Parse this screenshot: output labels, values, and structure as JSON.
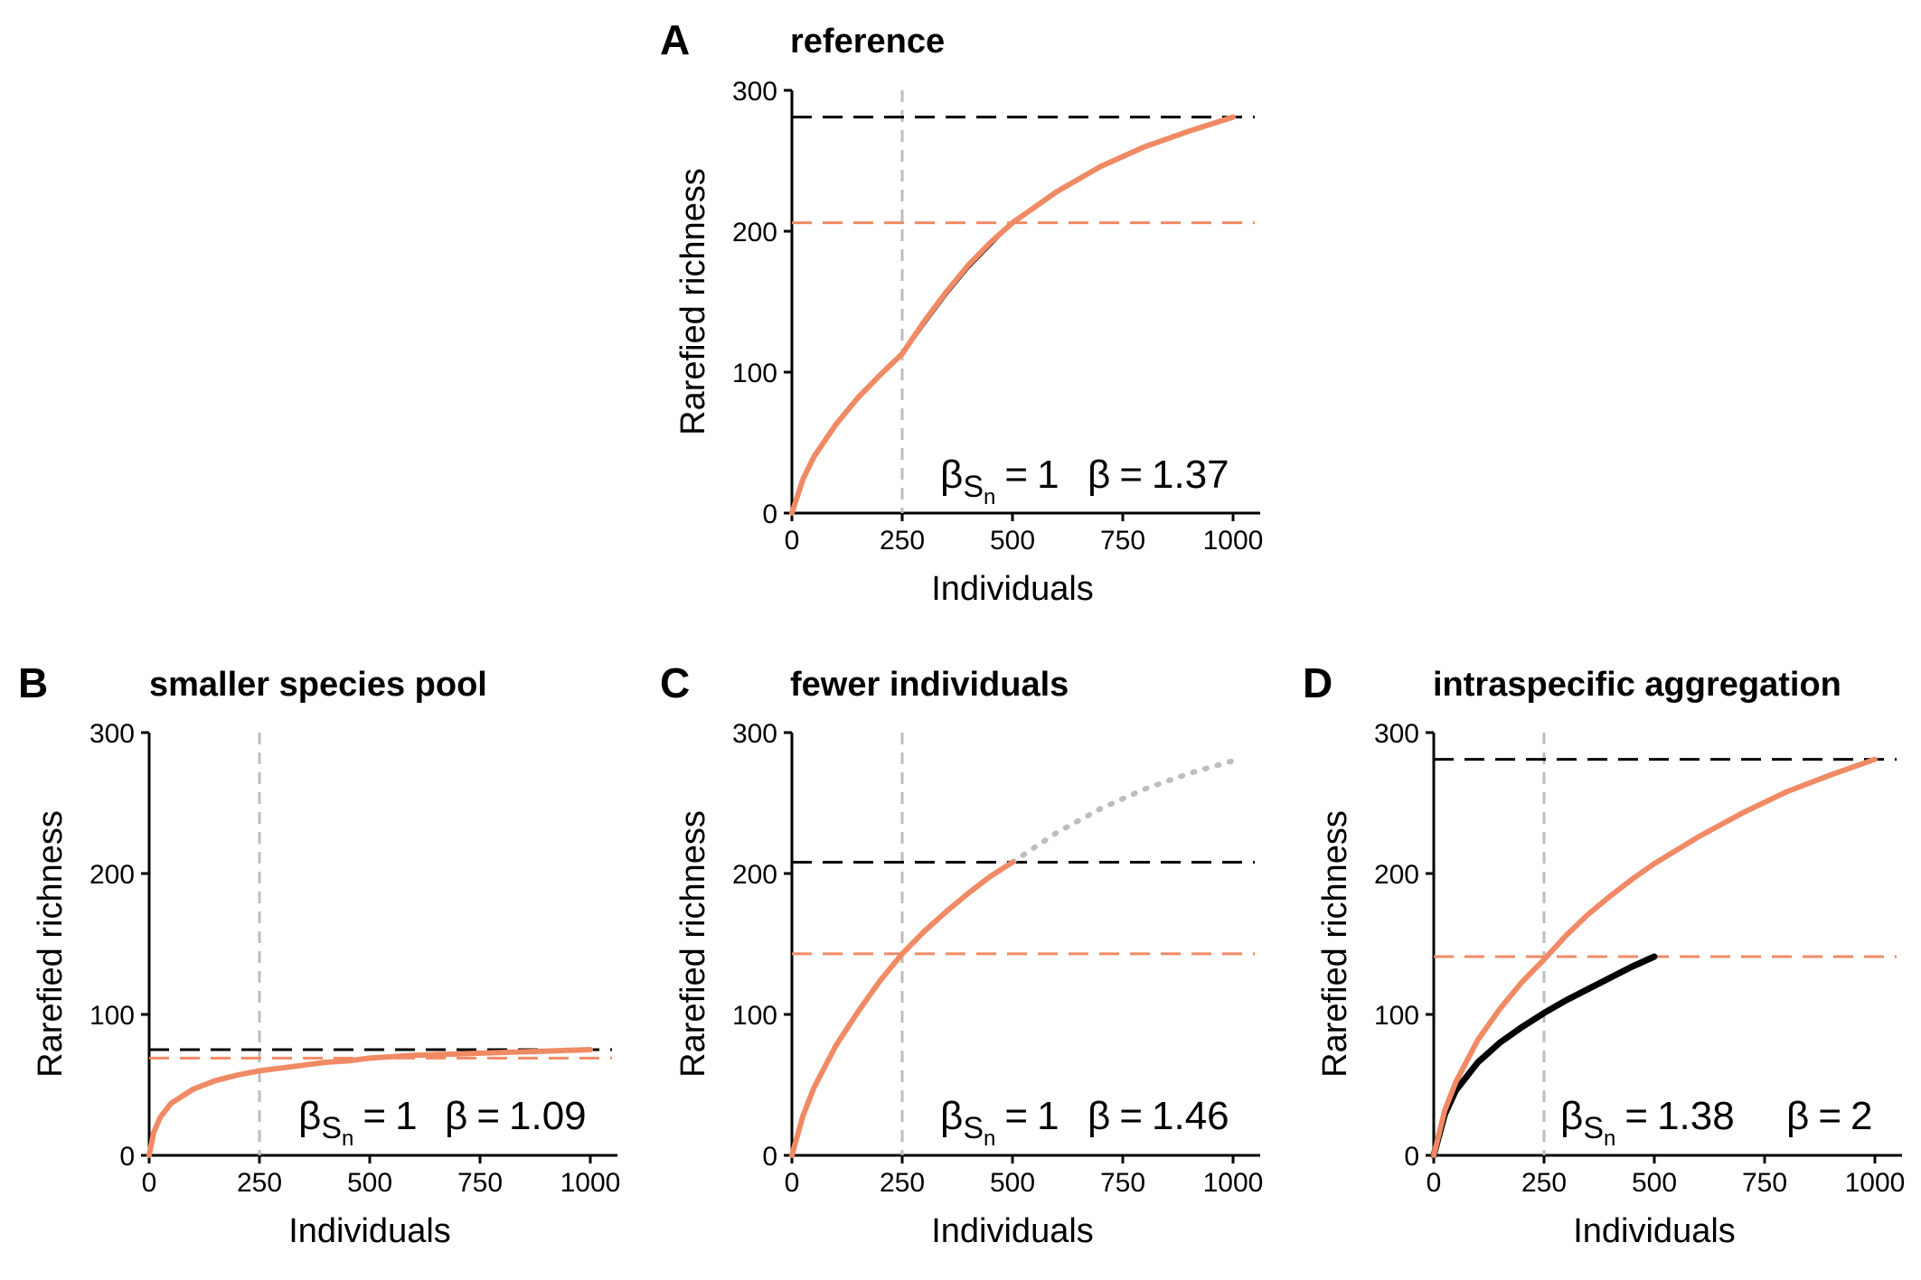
{
  "chart_data": [
    {
      "panel": "A",
      "title": "reference",
      "type": "line",
      "xlabel": "Individuals",
      "ylabel": "Rarefied richness",
      "xlim": [
        0,
        1000
      ],
      "ylim": [
        0,
        300
      ],
      "xticks": [
        "0",
        "250",
        "500",
        "750",
        "1000"
      ],
      "yticks": [
        "0",
        "100",
        "200",
        "300"
      ],
      "hlines": [
        {
          "y": 281,
          "color": "#000000",
          "style": "dashed"
        },
        {
          "y": 206,
          "color": "#F08A65",
          "style": "dashed"
        }
      ],
      "vline": {
        "x": 250,
        "color": "#BDBDBD",
        "style": "dashed"
      },
      "series": [
        {
          "color": "#000000",
          "style": "solid",
          "x": [
            0,
            25,
            50,
            100,
            150,
            200,
            250,
            300,
            350,
            400,
            450,
            500
          ],
          "y": [
            0,
            24,
            40,
            63,
            82,
            98,
            112,
            134,
            155,
            174,
            190,
            206
          ]
        },
        {
          "color": "#F08A65",
          "style": "solid",
          "x": [
            0,
            25,
            50,
            100,
            150,
            200,
            250,
            300,
            350,
            400,
            450,
            500,
            600,
            700,
            800,
            900,
            1000
          ],
          "y": [
            0,
            24,
            40,
            63,
            82,
            98,
            113,
            136,
            157,
            176,
            192,
            206,
            228,
            246,
            260,
            271,
            281
          ]
        }
      ],
      "annotations": {
        "beta_sn_label": "β",
        "beta_sn_sub": "S",
        "beta_sn_subsub": "n",
        "eq": "=",
        "beta_sn_value": "1",
        "beta_label": "β",
        "beta_value": "1.37"
      }
    },
    {
      "panel": "B",
      "title": "smaller species pool",
      "type": "line",
      "xlabel": "Individuals",
      "ylabel": "Rarefied richness",
      "xlim": [
        0,
        1000
      ],
      "ylim": [
        0,
        300
      ],
      "xticks": [
        "0",
        "250",
        "500",
        "750",
        "1000"
      ],
      "yticks": [
        "0",
        "100",
        "200",
        "300"
      ],
      "hlines": [
        {
          "y": 75,
          "color": "#000000",
          "style": "dashed"
        },
        {
          "y": 69,
          "color": "#F08A65",
          "style": "dashed"
        }
      ],
      "vline": {
        "x": 250,
        "color": "#BDBDBD",
        "style": "dashed"
      },
      "series": [
        {
          "color": "#000000",
          "style": "solid",
          "x": [
            0,
            10,
            25,
            50,
            100,
            150,
            200,
            250,
            300,
            350,
            400,
            450,
            500
          ],
          "y": [
            0,
            16,
            27,
            37,
            47,
            53,
            57,
            60,
            62,
            64,
            66,
            67,
            69
          ]
        },
        {
          "color": "#F08A65",
          "style": "solid",
          "x": [
            0,
            10,
            25,
            50,
            100,
            150,
            200,
            250,
            300,
            350,
            400,
            450,
            500,
            600,
            700,
            800,
            900,
            1000
          ],
          "y": [
            0,
            16,
            27,
            37,
            47,
            53,
            57,
            60,
            62,
            64,
            66,
            67,
            69,
            71,
            72,
            73,
            74,
            75
          ]
        }
      ],
      "annotations": {
        "beta_sn_label": "β",
        "beta_sn_sub": "S",
        "beta_sn_subsub": "n",
        "eq": "=",
        "beta_sn_value": "1",
        "beta_label": "β",
        "beta_value": "1.09"
      }
    },
    {
      "panel": "C",
      "title": "fewer individuals",
      "type": "line",
      "xlabel": "Individuals",
      "ylabel": "Rarefied richness",
      "xlim": [
        0,
        1000
      ],
      "ylim": [
        0,
        300
      ],
      "xticks": [
        "0",
        "250",
        "500",
        "750",
        "1000"
      ],
      "yticks": [
        "0",
        "100",
        "200",
        "300"
      ],
      "hlines": [
        {
          "y": 208,
          "color": "#000000",
          "style": "dashed"
        },
        {
          "y": 143,
          "color": "#F08A65",
          "style": "dashed"
        }
      ],
      "vline": {
        "x": 250,
        "color": "#BDBDBD",
        "style": "dashed"
      },
      "series": [
        {
          "color": "#000000",
          "style": "solid",
          "x": [
            0,
            25,
            50,
            100,
            150,
            200,
            250
          ],
          "y": [
            0,
            28,
            48,
            78,
            102,
            124,
            143
          ]
        },
        {
          "color": "#F08A65",
          "style": "solid",
          "x": [
            0,
            25,
            50,
            100,
            150,
            200,
            250,
            300,
            350,
            400,
            450,
            500
          ],
          "y": [
            0,
            28,
            48,
            78,
            102,
            124,
            143,
            159,
            173,
            186,
            198,
            208
          ]
        },
        {
          "color": "#BDBDBD",
          "style": "dotted",
          "x": [
            500,
            600,
            700,
            800,
            900,
            1000
          ],
          "y": [
            208,
            229,
            246,
            260,
            271,
            280
          ]
        }
      ],
      "annotations": {
        "beta_sn_label": "β",
        "beta_sn_sub": "S",
        "beta_sn_subsub": "n",
        "eq": "=",
        "beta_sn_value": "1",
        "beta_label": "β",
        "beta_value": "1.46"
      }
    },
    {
      "panel": "D",
      "title": "intraspecific aggregation",
      "type": "line",
      "xlabel": "Individuals",
      "ylabel": "Rarefied richness",
      "xlim": [
        0,
        1000
      ],
      "ylim": [
        0,
        300
      ],
      "xticks": [
        "0",
        "250",
        "500",
        "750",
        "1000"
      ],
      "yticks": [
        "0",
        "100",
        "200",
        "300"
      ],
      "hlines": [
        {
          "y": 281,
          "color": "#000000",
          "style": "dashed"
        },
        {
          "y": 141,
          "color": "#F08A65",
          "style": "dashed"
        }
      ],
      "vline": {
        "x": 250,
        "color": "#BDBDBD",
        "style": "dashed"
      },
      "series": [
        {
          "color": "#000000",
          "style": "solid",
          "x": [
            0,
            25,
            50,
            100,
            150,
            200,
            250,
            300,
            350,
            400,
            450,
            500
          ],
          "y": [
            0,
            29,
            46,
            66,
            80,
            91,
            101,
            110,
            118,
            126,
            134,
            141
          ]
        },
        {
          "color": "#F08A65",
          "style": "solid",
          "x": [
            0,
            25,
            50,
            100,
            150,
            200,
            250,
            300,
            350,
            400,
            450,
            500,
            600,
            700,
            800,
            900,
            1000
          ],
          "y": [
            0,
            32,
            52,
            82,
            104,
            123,
            139,
            156,
            171,
            184,
            196,
            207,
            226,
            243,
            258,
            270,
            281
          ]
        }
      ],
      "annotations": {
        "beta_sn_label": "β",
        "beta_sn_sub": "S",
        "beta_sn_subsub": "n",
        "eq": "=",
        "beta_sn_value": "1.38",
        "beta_label": "β",
        "beta_value": "2"
      }
    }
  ]
}
